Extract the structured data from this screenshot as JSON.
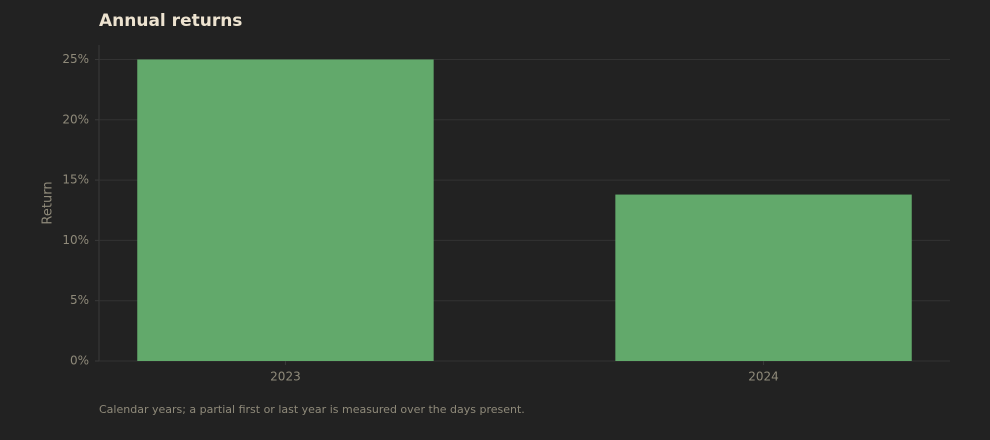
{
  "chart_data": {
    "type": "bar",
    "title": "Annual returns",
    "y_label": "Return",
    "note": "Calendar years; a partial first or last year is measured over the days present.",
    "categories": [
      "2023",
      "2024"
    ],
    "values": [
      25,
      13.8
    ],
    "color": "#62a96b",
    "ylim": [
      0,
      26.2
    ],
    "yticks": [
      {
        "value": 0,
        "label": "0%"
      },
      {
        "value": 5,
        "label": "5%"
      },
      {
        "value": 10,
        "label": "10%"
      },
      {
        "value": 15,
        "label": "15%"
      },
      {
        "value": 20,
        "label": "20%"
      },
      {
        "value": 25,
        "label": "25%"
      }
    ],
    "grid": true
  }
}
